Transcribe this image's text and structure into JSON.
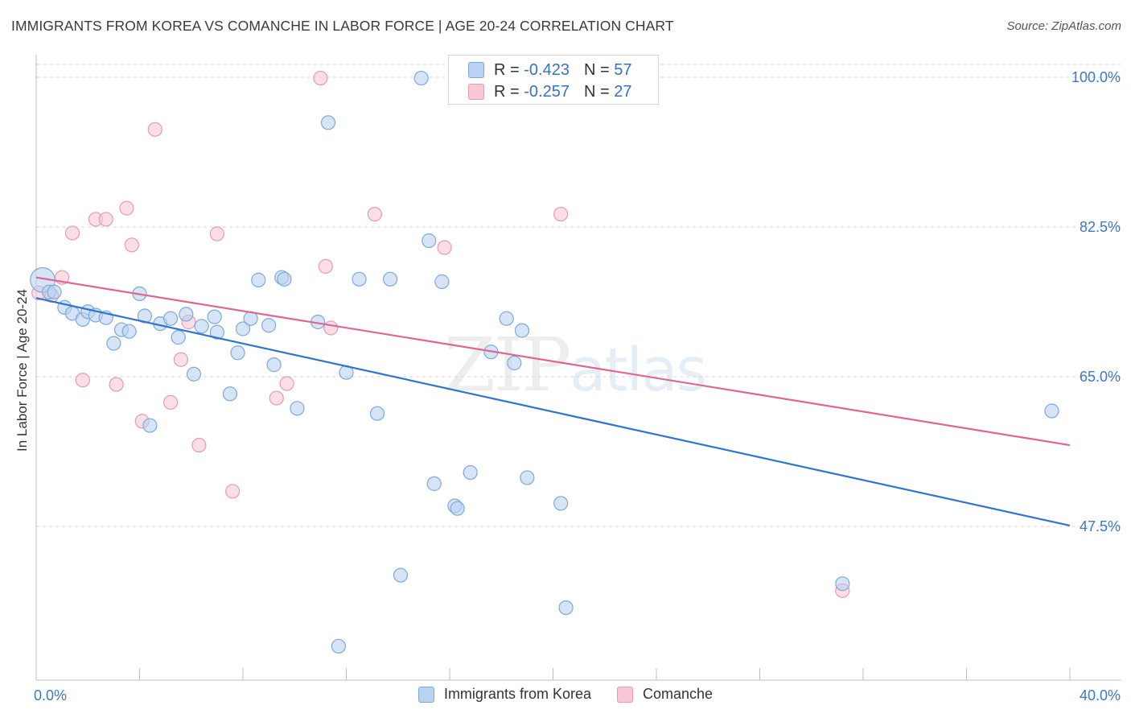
{
  "header": {
    "title": "IMMIGRANTS FROM KOREA VS COMANCHE IN LABOR FORCE | AGE 20-24 CORRELATION CHART",
    "source": "Source: ZipAtlas.com"
  },
  "watermark": {
    "zip": "ZIP",
    "atlas": "atlas"
  },
  "legend_top": {
    "rows": [
      {
        "r_label": "R =",
        "r_value": "-0.423",
        "n_label": "N =",
        "n_value": "57"
      },
      {
        "r_label": "R =",
        "r_value": "-0.257",
        "n_label": "N =",
        "n_value": "27"
      }
    ]
  },
  "legend_bottom": {
    "series1": "Immigrants from Korea",
    "series2": "Comanche"
  },
  "colors": {
    "korea_fill": "#b9d2f1",
    "korea_stroke": "#7fa8dc",
    "korea_line": "#2f74cf",
    "comanche_fill": "#f8c8d6",
    "comanche_stroke": "#e79ab2",
    "comanche_line": "#e0668f",
    "tick_label": "#3b78c9",
    "grid": "#d5d5d5"
  },
  "chart_data": {
    "type": "scatter",
    "title": "IMMIGRANTS FROM KOREA VS COMANCHE IN LABOR FORCE | AGE 20-24 CORRELATION CHART",
    "xlabel": "",
    "ylabel": "In Labor Force | Age 20-24",
    "xlim": [
      0,
      40
    ],
    "ylim": [
      31,
      102
    ],
    "x_tick_labels": [
      "0.0%",
      "40.0%"
    ],
    "y_ticks": [
      47.5,
      65.0,
      82.5,
      100.0
    ],
    "y_tick_labels": [
      "47.5%",
      "65.0%",
      "82.5%",
      "100.0%"
    ],
    "grid": "horizontal dashed",
    "legend_position": "top-center",
    "series": [
      {
        "name": "Immigrants from Korea",
        "r": -0.423,
        "n": 57,
        "trend": [
          [
            0,
            74.2
          ],
          [
            40,
            47.6
          ]
        ],
        "points": [
          [
            0.25,
            76.3,
            18
          ],
          [
            0.5,
            74.9,
            10
          ],
          [
            0.7,
            74.9,
            10
          ],
          [
            1.1,
            73.1,
            10
          ],
          [
            1.4,
            72.4,
            10
          ],
          [
            1.8,
            71.7,
            10
          ],
          [
            2.0,
            72.6,
            10
          ],
          [
            2.3,
            72.2,
            10
          ],
          [
            2.7,
            71.9,
            10
          ],
          [
            3.0,
            68.9,
            10
          ],
          [
            3.3,
            70.5,
            10
          ],
          [
            3.6,
            70.3,
            10
          ],
          [
            4.0,
            74.7,
            10
          ],
          [
            4.2,
            72.1,
            10
          ],
          [
            4.4,
            59.3,
            10
          ],
          [
            4.8,
            71.2,
            10
          ],
          [
            5.2,
            71.8,
            10
          ],
          [
            5.5,
            69.6,
            10
          ],
          [
            5.8,
            72.3,
            10
          ],
          [
            6.1,
            65.3,
            10
          ],
          [
            6.4,
            70.9,
            10
          ],
          [
            6.9,
            72.0,
            10
          ],
          [
            7.0,
            70.2,
            10
          ],
          [
            7.5,
            63.0,
            10
          ],
          [
            7.8,
            67.8,
            10
          ],
          [
            8.0,
            70.6,
            10
          ],
          [
            8.3,
            71.8,
            10
          ],
          [
            8.6,
            76.3,
            10
          ],
          [
            9.0,
            71.0,
            10
          ],
          [
            9.2,
            66.4,
            10
          ],
          [
            9.5,
            76.6,
            10
          ],
          [
            9.6,
            76.4,
            10
          ],
          [
            10.1,
            61.3,
            10
          ],
          [
            10.9,
            71.4,
            10
          ],
          [
            11.3,
            94.7,
            10
          ],
          [
            11.7,
            33.5,
            10
          ],
          [
            12.0,
            65.5,
            10
          ],
          [
            12.5,
            76.4,
            10
          ],
          [
            13.2,
            60.7,
            10
          ],
          [
            13.7,
            76.4,
            10
          ],
          [
            14.1,
            41.8,
            10
          ],
          [
            14.9,
            99.9,
            10
          ],
          [
            15.2,
            80.9,
            10
          ],
          [
            15.4,
            52.5,
            10
          ],
          [
            15.7,
            76.1,
            10
          ],
          [
            16.2,
            49.9,
            10
          ],
          [
            16.3,
            49.6,
            10
          ],
          [
            16.8,
            53.8,
            10
          ],
          [
            17.6,
            67.9,
            10
          ],
          [
            18.2,
            71.8,
            10
          ],
          [
            18.5,
            66.6,
            10
          ],
          [
            18.8,
            70.4,
            10
          ],
          [
            19.0,
            53.2,
            10
          ],
          [
            20.3,
            50.2,
            10
          ],
          [
            31.2,
            40.8,
            10
          ],
          [
            39.3,
            61.0,
            10
          ],
          [
            20.5,
            38.0,
            10
          ]
        ]
      },
      {
        "name": "Comanche",
        "r": -0.257,
        "n": 27,
        "trend": [
          [
            0,
            76.6
          ],
          [
            40,
            57.0
          ]
        ],
        "points": [
          [
            0.1,
            74.8,
            10
          ],
          [
            0.6,
            74.5,
            10
          ],
          [
            1.0,
            76.6,
            10
          ],
          [
            1.4,
            81.8,
            10
          ],
          [
            1.8,
            64.6,
            10
          ],
          [
            2.3,
            83.4,
            10
          ],
          [
            2.7,
            83.4,
            10
          ],
          [
            3.1,
            64.1,
            10
          ],
          [
            3.5,
            84.7,
            10
          ],
          [
            3.7,
            80.4,
            10
          ],
          [
            4.1,
            59.8,
            10
          ],
          [
            4.6,
            93.9,
            10
          ],
          [
            5.2,
            62.0,
            10
          ],
          [
            5.6,
            67.0,
            10
          ],
          [
            5.9,
            71.4,
            10
          ],
          [
            6.3,
            57.0,
            10
          ],
          [
            7.0,
            81.7,
            10
          ],
          [
            7.6,
            51.6,
            10
          ],
          [
            9.3,
            62.5,
            10
          ],
          [
            9.7,
            64.2,
            10
          ],
          [
            11.0,
            99.9,
            10
          ],
          [
            11.2,
            77.9,
            10
          ],
          [
            11.4,
            70.7,
            10
          ],
          [
            13.1,
            84.0,
            10
          ],
          [
            15.8,
            80.1,
            10
          ],
          [
            20.3,
            84.0,
            10
          ],
          [
            31.2,
            40.0,
            10
          ]
        ]
      }
    ]
  }
}
